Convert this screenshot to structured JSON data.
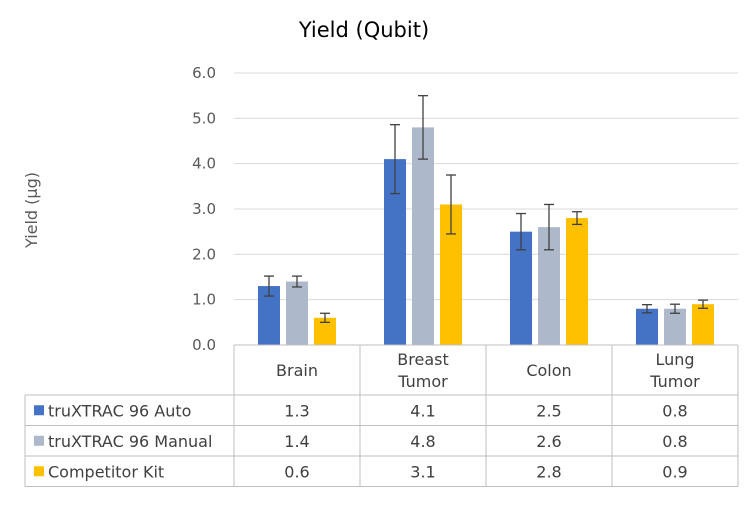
{
  "chart_data": {
    "type": "bar",
    "title": "Yield (Qubit)",
    "ylabel": "Yield (µg)",
    "xlabel": "",
    "ylim": [
      0,
      6
    ],
    "yticks": [
      "0.0",
      "1.0",
      "2.0",
      "3.0",
      "4.0",
      "5.0",
      "6.0"
    ],
    "grid": true,
    "legend": "data-table",
    "categories": [
      [
        "Brain"
      ],
      [
        "Breast",
        "Tumor"
      ],
      [
        "Colon"
      ],
      [
        "Lung",
        "Tumor"
      ]
    ],
    "series": [
      {
        "name": "truXTRAC 96 Auto",
        "color": "#4472c4",
        "values": [
          1.3,
          4.1,
          2.5,
          0.8
        ],
        "display": [
          "1.3",
          "4.1",
          "2.5",
          "0.8"
        ],
        "error": [
          0.22,
          0.76,
          0.4,
          0.09
        ]
      },
      {
        "name": "truXTRAC 96 Manual",
        "color": "#adb9ca",
        "values": [
          1.4,
          4.8,
          2.6,
          0.8
        ],
        "display": [
          "1.4",
          "4.8",
          "2.6",
          "0.8"
        ],
        "error": [
          0.12,
          0.7,
          0.5,
          0.1
        ]
      },
      {
        "name": "Competitor Kit",
        "color": "#ffc000",
        "values": [
          0.6,
          3.1,
          2.8,
          0.9
        ],
        "display": [
          "0.6",
          "3.1",
          "2.8",
          "0.9"
        ],
        "error": [
          0.1,
          0.65,
          0.14,
          0.09
        ]
      }
    ]
  }
}
